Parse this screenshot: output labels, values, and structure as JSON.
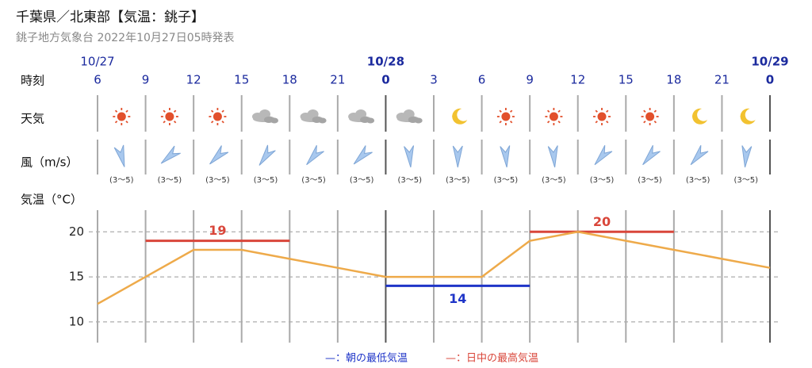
{
  "header": {
    "title": "千葉県／北東部【気温：銚子】",
    "subtitle": "銚子地方気象台 2022年10月27日05時発表"
  },
  "row_labels": [
    "時刻",
    "天気",
    "風（m/s）",
    "気温（°C）"
  ],
  "dates": [
    "10/27",
    null,
    null,
    null,
    null,
    null,
    "10/28",
    null,
    null,
    null,
    null,
    null,
    null,
    null,
    "10/29"
  ],
  "wind": [
    "(3〜5)",
    "(3〜5)",
    "(3〜5)",
    "(3〜5)",
    "(3〜5)",
    "(3〜5)",
    "(3〜5)",
    "(3〜5)",
    "(3〜5)",
    "(3〜5)",
    "(3〜5)",
    "(3〜5)",
    "(3〜5)",
    "(3〜5)"
  ],
  "chart_data": {
    "type": "line",
    "x": [
      0,
      3,
      6,
      9,
      12,
      15,
      18,
      21,
      24,
      27,
      30,
      33,
      36,
      39,
      42
    ],
    "values": [
      12,
      15,
      18,
      18,
      17,
      16,
      15,
      15,
      15,
      19,
      20,
      19,
      18,
      17,
      16
    ],
    "color": "#eeaa4a",
    "xlim": [
      0,
      42
    ],
    "xticks": [
      {
        "value": 0,
        "label": "6"
      },
      {
        "value": 3,
        "label": "9"
      },
      {
        "value": 6,
        "label": "12"
      },
      {
        "value": 9,
        "label": "15"
      },
      {
        "value": 12,
        "label": "18"
      },
      {
        "value": 15,
        "label": "21"
      },
      {
        "value": 18,
        "label": "0"
      },
      {
        "value": 21,
        "label": "3"
      },
      {
        "value": 24,
        "label": "6"
      },
      {
        "value": 27,
        "label": "9"
      },
      {
        "value": 30,
        "label": "12"
      },
      {
        "value": 33,
        "label": "15"
      },
      {
        "value": 36,
        "label": "18"
      },
      {
        "value": 39,
        "label": "21"
      },
      {
        "value": 42,
        "label": "0"
      }
    ],
    "ylim": [
      7.7,
      22.4
    ],
    "yticks": [
      10,
      15,
      20
    ],
    "grid": true,
    "ranges": [
      {
        "name": "—：朝の最低気温",
        "color": "#1f35c8",
        "segments": [
          {
            "value": 14,
            "x": [
              18,
              27
            ]
          }
        ]
      },
      {
        "name": "—：日中の最高気温",
        "color": "#d9463a",
        "segments": [
          {
            "value": 19,
            "x": [
              3,
              12
            ]
          },
          {
            "value": 20,
            "x": [
              27,
              36
            ]
          }
        ]
      }
    ]
  }
}
